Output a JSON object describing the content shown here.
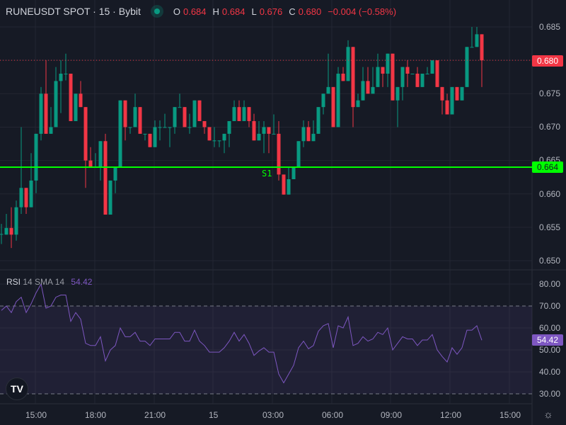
{
  "header": {
    "symbol": "RUNEUSDT SPOT · 15 · Bybit",
    "o_label": "O",
    "o": "0.684",
    "h_label": "H",
    "h": "0.684",
    "l_label": "L",
    "l": "0.676",
    "c_label": "C",
    "c": "0.680",
    "change": "−0.004 (−0.58%)",
    "status_color": "#089981"
  },
  "price_axis": {
    "ticks": [
      "0.685",
      "0.680",
      "0.675",
      "0.670",
      "0.665",
      "0.660",
      "0.655",
      "0.650"
    ],
    "current": "0.680",
    "support": "0.664"
  },
  "support_label": "S1",
  "rsi": {
    "label": "RSI",
    "params": "14 SMA 14",
    "value": "54.42",
    "ticks": [
      "80.00",
      "70.00",
      "60.00",
      "50.00",
      "40.00",
      "30.00"
    ]
  },
  "time_axis": [
    "15:00",
    "18:00",
    "21:00",
    "15",
    "03:00",
    "06:00",
    "09:00",
    "12:00",
    "15:00"
  ],
  "colors": {
    "up": "#089981",
    "down": "#f23645",
    "rsi": "#7e57c2",
    "support": "#00ff00"
  },
  "icons": {
    "logo": "tradingview-logo",
    "settings": "gear-icon"
  },
  "chart_data": {
    "type": "candlestick",
    "interval": "15m",
    "ylim": [
      0.648,
      0.687
    ],
    "support": 0.664,
    "ohlc": [
      [
        0.654,
        0.6555,
        0.6525,
        0.654
      ],
      [
        0.6539,
        0.657,
        0.6539,
        0.6549
      ],
      [
        0.6549,
        0.658,
        0.6519,
        0.6539
      ],
      [
        0.6539,
        0.659,
        0.653,
        0.658
      ],
      [
        0.658,
        0.67,
        0.657,
        0.6609
      ],
      [
        0.6609,
        0.6609,
        0.657,
        0.658
      ],
      [
        0.658,
        0.6661,
        0.658,
        0.662
      ],
      [
        0.662,
        0.669,
        0.6601,
        0.669
      ],
      [
        0.669,
        0.676,
        0.668,
        0.675
      ],
      [
        0.675,
        0.68,
        0.669,
        0.669
      ],
      [
        0.669,
        0.673,
        0.669,
        0.67
      ],
      [
        0.67,
        0.679,
        0.67,
        0.6769
      ],
      [
        0.6769,
        0.68,
        0.6721,
        0.678
      ],
      [
        0.678,
        0.681,
        0.677,
        0.678
      ],
      [
        0.678,
        0.678,
        0.6709,
        0.6709
      ],
      [
        0.6709,
        0.675,
        0.6709,
        0.675
      ],
      [
        0.675,
        0.6769,
        0.673,
        0.673
      ],
      [
        0.673,
        0.673,
        0.6609,
        0.665
      ],
      [
        0.665,
        0.667,
        0.6639,
        0.6639
      ],
      [
        0.664,
        0.6661,
        0.6639,
        0.664
      ],
      [
        0.664,
        0.6679,
        0.662,
        0.6679
      ],
      [
        0.6679,
        0.669,
        0.6569,
        0.6569
      ],
      [
        0.6569,
        0.662,
        0.6569,
        0.662
      ],
      [
        0.662,
        0.664,
        0.6601,
        0.664
      ],
      [
        0.664,
        0.674,
        0.664,
        0.674
      ],
      [
        0.674,
        0.674,
        0.668,
        0.67
      ],
      [
        0.67,
        0.67,
        0.669,
        0.67
      ],
      [
        0.67,
        0.675,
        0.67,
        0.673
      ],
      [
        0.673,
        0.673,
        0.669,
        0.669
      ],
      [
        0.669,
        0.669,
        0.668,
        0.669
      ],
      [
        0.669,
        0.669,
        0.667,
        0.667
      ],
      [
        0.667,
        0.671,
        0.667,
        0.67
      ],
      [
        0.67,
        0.671,
        0.668,
        0.67
      ],
      [
        0.67,
        0.672,
        0.67,
        0.67
      ],
      [
        0.67,
        0.67,
        0.667,
        0.67
      ],
      [
        0.67,
        0.673,
        0.669,
        0.673
      ],
      [
        0.673,
        0.675,
        0.673,
        0.673
      ],
      [
        0.673,
        0.673,
        0.67,
        0.67
      ],
      [
        0.67,
        0.672,
        0.669,
        0.67
      ],
      [
        0.67,
        0.674,
        0.67,
        0.674
      ],
      [
        0.674,
        0.674,
        0.6709,
        0.6709
      ],
      [
        0.6709,
        0.6709,
        0.669,
        0.67
      ],
      [
        0.67,
        0.67,
        0.668,
        0.668
      ],
      [
        0.668,
        0.67,
        0.667,
        0.668
      ],
      [
        0.668,
        0.668,
        0.667,
        0.668
      ],
      [
        0.668,
        0.669,
        0.6661,
        0.669
      ],
      [
        0.669,
        0.6709,
        0.667,
        0.6709
      ],
      [
        0.6709,
        0.674,
        0.6709,
        0.673
      ],
      [
        0.673,
        0.674,
        0.6709,
        0.6709
      ],
      [
        0.6709,
        0.674,
        0.6709,
        0.673
      ],
      [
        0.673,
        0.673,
        0.67,
        0.6709
      ],
      [
        0.6709,
        0.672,
        0.668,
        0.668
      ],
      [
        0.668,
        0.6709,
        0.668,
        0.669
      ],
      [
        0.669,
        0.6709,
        0.6661,
        0.67
      ],
      [
        0.67,
        0.67,
        0.6661,
        0.669
      ],
      [
        0.669,
        0.6719,
        0.669,
        0.669
      ],
      [
        0.669,
        0.6709,
        0.662,
        0.6629
      ],
      [
        0.6629,
        0.6629,
        0.6599,
        0.6599
      ],
      [
        0.6599,
        0.664,
        0.6599,
        0.6622
      ],
      [
        0.6622,
        0.664,
        0.6622,
        0.664
      ],
      [
        0.664,
        0.6679,
        0.664,
        0.6679
      ],
      [
        0.6679,
        0.671,
        0.667,
        0.67
      ],
      [
        0.67,
        0.6709,
        0.6679,
        0.6679
      ],
      [
        0.6679,
        0.671,
        0.6679,
        0.669
      ],
      [
        0.669,
        0.673,
        0.669,
        0.673
      ],
      [
        0.673,
        0.675,
        0.6719,
        0.675
      ],
      [
        0.675,
        0.681,
        0.675,
        0.676
      ],
      [
        0.676,
        0.676,
        0.67,
        0.67
      ],
      [
        0.67,
        0.679,
        0.67,
        0.678
      ],
      [
        0.678,
        0.679,
        0.6769,
        0.6769
      ],
      [
        0.6769,
        0.683,
        0.6769,
        0.682
      ],
      [
        0.682,
        0.682,
        0.67,
        0.673
      ],
      [
        0.673,
        0.675,
        0.673,
        0.674
      ],
      [
        0.674,
        0.679,
        0.674,
        0.6769
      ],
      [
        0.6769,
        0.679,
        0.675,
        0.675
      ],
      [
        0.675,
        0.679,
        0.675,
        0.676
      ],
      [
        0.676,
        0.681,
        0.676,
        0.679
      ],
      [
        0.679,
        0.679,
        0.676,
        0.678
      ],
      [
        0.678,
        0.681,
        0.676,
        0.681
      ],
      [
        0.681,
        0.681,
        0.674,
        0.674
      ],
      [
        0.674,
        0.676,
        0.67,
        0.676
      ],
      [
        0.676,
        0.679,
        0.674,
        0.679
      ],
      [
        0.679,
        0.68,
        0.676,
        0.678
      ],
      [
        0.678,
        0.678,
        0.678,
        0.678
      ],
      [
        0.678,
        0.679,
        0.676,
        0.676
      ],
      [
        0.676,
        0.678,
        0.676,
        0.678
      ],
      [
        0.678,
        0.679,
        0.678,
        0.678
      ],
      [
        0.678,
        0.68,
        0.678,
        0.68
      ],
      [
        0.68,
        0.68,
        0.676,
        0.676
      ],
      [
        0.676,
        0.676,
        0.6719,
        0.674
      ],
      [
        0.674,
        0.675,
        0.6719,
        0.6719
      ],
      [
        0.6719,
        0.676,
        0.6719,
        0.676
      ],
      [
        0.676,
        0.676,
        0.674,
        0.674
      ],
      [
        0.674,
        0.676,
        0.674,
        0.676
      ],
      [
        0.676,
        0.682,
        0.676,
        0.682
      ],
      [
        0.682,
        0.685,
        0.682,
        0.682
      ],
      [
        0.682,
        0.685,
        0.682,
        0.6839
      ],
      [
        0.6839,
        0.6839,
        0.676,
        0.68
      ]
    ],
    "rsi": [
      68,
      70,
      67,
      72,
      74,
      67,
      71,
      76,
      80,
      69,
      70,
      74,
      75,
      75,
      63,
      67,
      64,
      53,
      52,
      52,
      56,
      45,
      50,
      52,
      60,
      56,
      56,
      58,
      54,
      54,
      52,
      55,
      55,
      55,
      55,
      58,
      58,
      54,
      54,
      59,
      54,
      52,
      49,
      49,
      49,
      51,
      54,
      58,
      54,
      57,
      53,
      47.5,
      49.5,
      51,
      49,
      49,
      39,
      35,
      39,
      43,
      51,
      54,
      50.5,
      52,
      58.5,
      61,
      62,
      51,
      61,
      60,
      65,
      52,
      53,
      56,
      54,
      55,
      58,
      57,
      60,
      50,
      53,
      56,
      55,
      55,
      52,
      54.5,
      54.5,
      57,
      50,
      47,
      44.5,
      51,
      48,
      51,
      59,
      59,
      61,
      54.42
    ],
    "rsi_ylim": [
      25,
      85
    ],
    "rsi_bands": [
      30,
      70
    ]
  }
}
